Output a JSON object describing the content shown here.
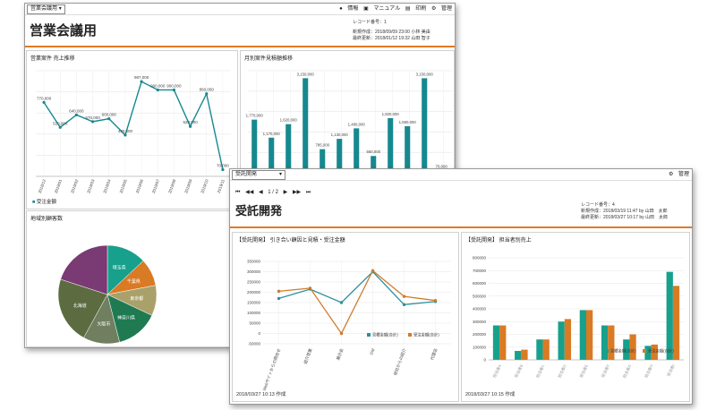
{
  "window_a": {
    "select_label": "営業会議用",
    "toolbar_links": [
      "情報",
      "マニュアル",
      "印刷",
      "管理"
    ],
    "title": "営業会議用",
    "meta": {
      "record_no": "レコード番号：1",
      "created": "新規作成：2018/09/09 23:00 小林 美由",
      "updated": "最終更新：2018/01/12 19:32 山田 智子"
    },
    "line_panel": {
      "title": "営業案件 売上推移",
      "legend": "受注金額"
    },
    "bar_panel": {
      "title": "月別案件見積額推移"
    },
    "pie_panel": {
      "title": "地域別顧客数"
    }
  },
  "window_b": {
    "select_label": "受託開発",
    "toolbar_link": "管理",
    "pager": {
      "first": "⏮",
      "prev_fast": "◀◀",
      "prev": "◀",
      "page": "1 / 2",
      "next": "▶",
      "next_fast": "▶▶",
      "last": "⏭"
    },
    "title": "受託開発",
    "meta": {
      "record_no": "レコード番号：4",
      "created": "新規作成：2018/03/19 11:47 by 山田　太郎",
      "updated": "最終更新：2018/03/27 10:17 by 山田　太郎"
    },
    "line_panel": {
      "title": "【受託開発】 引き合い顧因と見積・受注金額",
      "footnote": "2018/03/27 10:13 作成"
    },
    "bar_panel": {
      "title": "【受託開発】 担当者別売上",
      "footnote": "2018/03/27 10:15 作成"
    }
  },
  "chart_data": [
    {
      "type": "line",
      "title": "営業案件 売上推移",
      "categories": [
        "2018/12",
        "2019/01",
        "2019/02",
        "2019/03",
        "2019/04",
        "2019/05",
        "2019/06",
        "2019/07",
        "2019/08",
        "2019/09",
        "2019/10",
        "2019/11"
      ],
      "series": [
        {
          "name": "受注金額",
          "values": [
            770000,
            510000,
            640000,
            570000,
            600000,
            430000,
            987000,
            900000,
            900000,
            520000,
            860000,
            70000
          ]
        }
      ],
      "data_labels": [
        "770,000",
        "510,000",
        "640,000",
        "570,000",
        "600,000",
        "430,000",
        "987,000",
        "900,000",
        "900,000",
        "520,000",
        "860,000",
        "70,000"
      ],
      "ylim": [
        0,
        1100000
      ],
      "grid": true,
      "legend": "bottom-left",
      "color": "#16898f"
    },
    {
      "type": "bar",
      "title": "月別案件見積額推移",
      "values": [
        1770000,
        1170000,
        1620000,
        3150000,
        785000,
        1130000,
        1480000,
        560000,
        1820000,
        1550000,
        3150000,
        70000
      ],
      "data_labels": [
        "1,770,000",
        "1,170,000",
        "1,620,000",
        "3,150,000",
        "785,000",
        "1,130,000",
        "1,480,000",
        "560,000",
        "1,820,000",
        "1,550,000",
        "3,150,000",
        "70,000"
      ],
      "ylim": [
        0,
        3400000
      ],
      "grid": true,
      "color": "#16898f"
    },
    {
      "type": "pie",
      "title": "地域別顧客数",
      "slices": [
        {
          "label": "埼玉県",
          "value": 13,
          "color": "#17a08c"
        },
        {
          "label": "千葉県",
          "value": 9,
          "color": "#d97a25"
        },
        {
          "label": "東京都",
          "value": 10,
          "color": "#aaa16a"
        },
        {
          "label": "神奈川県",
          "value": 14,
          "color": "#1f7a52"
        },
        {
          "label": "大阪市",
          "value": 12,
          "color": "#6f7f5f"
        },
        {
          "label": "北海道",
          "value": 22,
          "color": "#5d6c40"
        },
        {
          "label": "",
          "value": 20,
          "color": "#7a3a74"
        }
      ]
    },
    {
      "type": "line",
      "title": "【受託開発】 引き合い顧因と見積・受注金額",
      "categories": [
        "Webサイトからの問合せ",
        "紹介営業",
        "展示会",
        "DM",
        "他社からの紹介",
        "代理店"
      ],
      "series": [
        {
          "name": "見積金額(合計)",
          "values": [
            170000,
            215000,
            150000,
            300000,
            140000,
            155000
          ],
          "color": "#2d8f9d"
        },
        {
          "name": "受注金額(合計)",
          "values": [
            205000,
            220000,
            0,
            305000,
            180000,
            160000
          ],
          "color": "#d07b2a"
        }
      ],
      "yticks": [
        "350000",
        "300000",
        "250000",
        "200000",
        "150000",
        "100000",
        "50000",
        "0",
        "-50000"
      ],
      "ylim": [
        -50000,
        350000
      ],
      "legend": "bottom-right",
      "grid": true
    },
    {
      "type": "bar",
      "title": "【受託開発】 担当者別売上",
      "categories": [
        "担当者A",
        "担当者B",
        "担当者C",
        "担当者D",
        "担当者E",
        "担当者F",
        "担当者G",
        "担当者H",
        "担当者I"
      ],
      "series": [
        {
          "name": "見積金額(合計)",
          "values": [
            270000,
            70000,
            160000,
            300000,
            390000,
            270000,
            160000,
            110000,
            690000
          ],
          "color": "#17a08c"
        },
        {
          "name": "受注金額(合計)",
          "values": [
            270000,
            80000,
            160000,
            320000,
            390000,
            270000,
            200000,
            120000,
            580000
          ],
          "color": "#d97a25"
        }
      ],
      "yticks": [
        "800000",
        "700000",
        "600000",
        "500000",
        "400000",
        "300000",
        "200000",
        "100000",
        "0"
      ],
      "ylim": [
        0,
        800000
      ],
      "legend": "bottom-right",
      "grid": true
    }
  ]
}
